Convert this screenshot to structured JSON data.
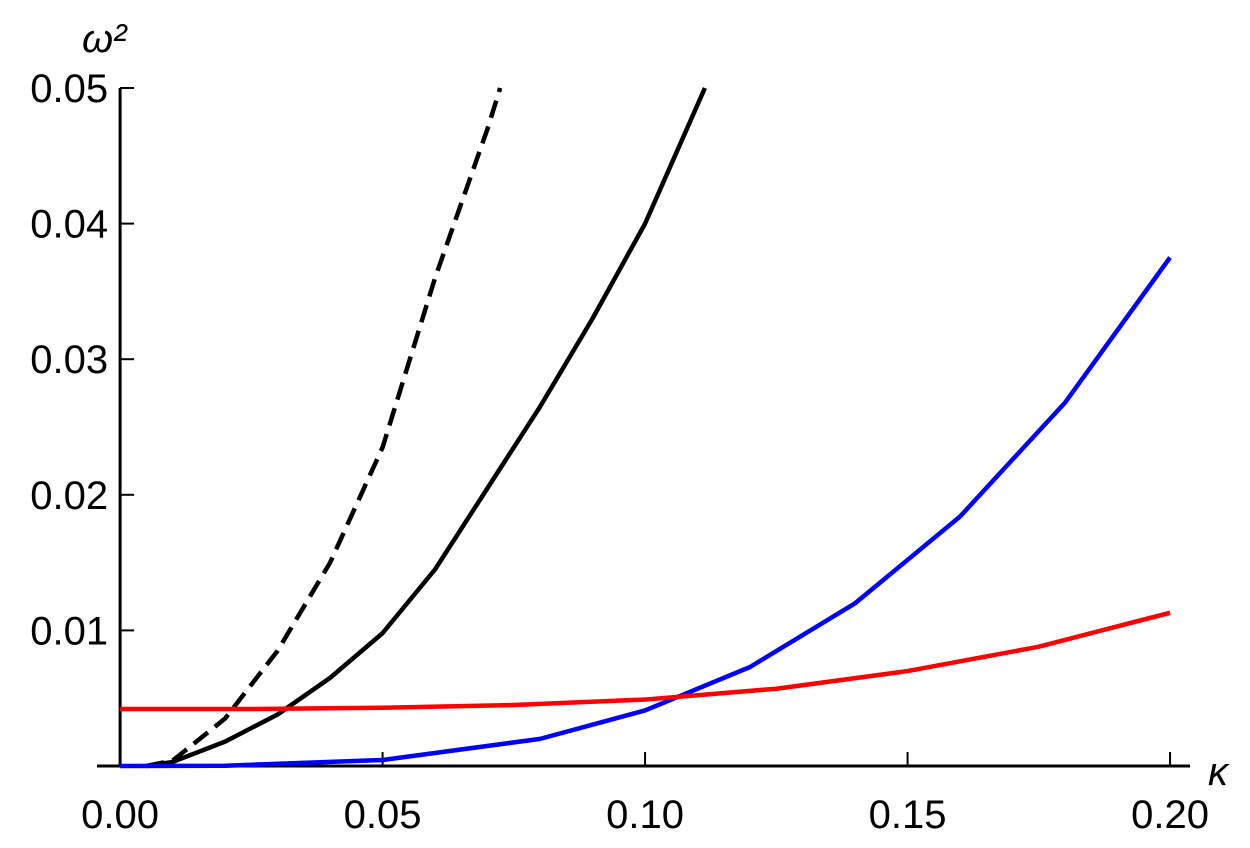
{
  "chart_data": {
    "type": "line",
    "x_label": "κ",
    "y_label": "ω²",
    "xlim": [
      -0.0044,
      0.2038
    ],
    "ylim": [
      0,
      0.05
    ],
    "xticks": [
      {
        "value": 0,
        "label": "0.00"
      },
      0.05,
      {
        "value": 0.1,
        "label": "0.10"
      },
      0.15,
      {
        "value": 0.2,
        "label": "0.20"
      }
    ],
    "yticks": [
      0.01,
      0.02,
      0.03,
      0.04,
      0.05
    ],
    "series": [
      {
        "color": "#000000",
        "dash": true,
        "x": [
          0.005,
          0.01,
          0.02,
          0.03,
          0.04,
          0.05,
          0.06,
          0.065,
          0.07,
          0.0724
        ],
        "values": [
          0,
          0.0004,
          0.0035,
          0.0085,
          0.015,
          0.0235,
          0.036,
          0.0415,
          0.047,
          0.05
        ]
      },
      {
        "color": "#000000",
        "dash": false,
        "x": [
          0.005,
          0.01,
          0.02,
          0.03,
          0.04,
          0.05,
          0.06,
          0.07,
          0.08,
          0.09,
          0.1,
          0.1114
        ],
        "values": [
          0,
          0.0003,
          0.0018,
          0.0038,
          0.0065,
          0.0098,
          0.0145,
          0.0205,
          0.0265,
          0.033,
          0.04,
          0.05
        ]
      },
      {
        "color": "#0000ff",
        "dash": false,
        "x": [
          0,
          0.02,
          0.05,
          0.08,
          0.1,
          0.12,
          0.14,
          0.16,
          0.18,
          0.2
        ],
        "values": [
          0,
          2e-05,
          0.00044,
          0.002,
          0.0041,
          0.0073,
          0.012,
          0.0184,
          0.0268,
          0.0375
        ]
      },
      {
        "color": "#ff0000",
        "dash": false,
        "x": [
          0,
          0.025,
          0.05,
          0.075,
          0.1,
          0.125,
          0.15,
          0.175,
          0.2
        ],
        "values": [
          0.0042,
          0.0042,
          0.0043,
          0.0045,
          0.0049,
          0.0057,
          0.007,
          0.0088,
          0.0113
        ]
      }
    ]
  }
}
